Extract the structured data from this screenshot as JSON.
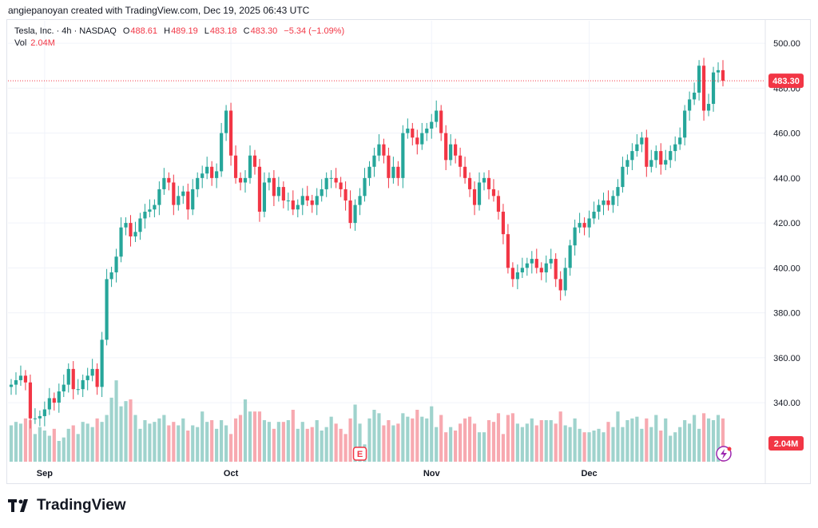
{
  "header": {
    "credit": "angiepanoyan created with TradingView.com, Dec 19, 2025 06:43 UTC"
  },
  "legend": {
    "symbol": "Tesla, Inc. · 4h · NASDAQ",
    "o_label": "O",
    "o_value": "488.61",
    "h_label": "H",
    "h_value": "489.19",
    "l_label": "L",
    "l_value": "483.18",
    "c_label": "C",
    "c_value": "483.30",
    "change": "−5.34 (−1.09%)",
    "vol_label": "Vol",
    "vol_value": "2.04M"
  },
  "footer": {
    "brand": "TradingView",
    "logo_text": "TV"
  },
  "colors": {
    "up": "#26a69a",
    "down": "#f23645",
    "vol_up": "#9fd3cd",
    "vol_down": "#f7a9b0",
    "grid": "#f0f3fa",
    "text": "#131722"
  },
  "chart_data": {
    "type": "candlestick",
    "title": "Tesla, Inc. · 4h · NASDAQ",
    "y_axis": {
      "ticks": [
        340,
        360,
        380,
        400,
        420,
        440,
        460,
        480,
        500
      ],
      "range": [
        313,
        510
      ]
    },
    "x_axis": {
      "labels": [
        {
          "label": "Sep",
          "index": 7
        },
        {
          "label": "Oct",
          "index": 46
        },
        {
          "label": "Nov",
          "index": 88
        },
        {
          "label": "Dec",
          "index": 121
        }
      ]
    },
    "last_price_label": "483.30",
    "last_volume_label": "2.04M",
    "event_marker": {
      "label": "E",
      "index": 73
    },
    "closes": [
      348,
      350,
      352,
      349,
      333,
      333,
      334,
      337,
      342,
      340,
      345,
      348,
      355,
      346,
      346,
      350,
      352,
      355,
      347,
      368,
      395,
      398,
      405,
      418,
      420,
      414,
      416,
      422,
      425,
      426,
      428,
      435,
      440,
      438,
      428,
      432,
      434,
      426,
      435,
      440,
      442,
      445,
      440,
      443,
      460,
      470,
      450,
      440,
      438,
      440,
      450,
      445,
      425,
      438,
      440,
      432,
      436,
      430,
      430,
      426,
      428,
      432,
      430,
      428,
      432,
      435,
      440,
      440,
      438,
      435,
      430,
      420,
      428,
      432,
      440,
      445,
      450,
      455,
      450,
      440,
      445,
      440,
      460,
      462,
      458,
      455,
      460,
      462,
      465,
      470,
      460,
      448,
      455,
      450,
      445,
      440,
      435,
      428,
      438,
      440,
      435,
      432,
      425,
      415,
      400,
      395,
      398,
      400,
      402,
      404,
      400,
      398,
      402,
      404,
      395,
      390,
      400,
      410,
      418,
      420,
      418,
      422,
      425,
      428,
      430,
      428,
      432,
      436,
      445,
      448,
      452,
      455,
      458,
      445,
      448,
      452,
      446,
      448,
      452,
      455,
      458,
      470,
      475,
      478,
      490,
      470,
      473,
      487,
      488,
      483.3
    ],
    "volumes": [
      21,
      23,
      22,
      25,
      24,
      16,
      20,
      18,
      15,
      19,
      12,
      14,
      19,
      21,
      16,
      23,
      22,
      20,
      25,
      23,
      27,
      37,
      47,
      32,
      35,
      36,
      27,
      19,
      24,
      22,
      23,
      25,
      27,
      21,
      23,
      21,
      25,
      18,
      21,
      20,
      29,
      23,
      24,
      19,
      24,
      21,
      16,
      25,
      27,
      36,
      29,
      29,
      29,
      24,
      23,
      19,
      23,
      23,
      24,
      30,
      19,
      23,
      19,
      20,
      24,
      18,
      20,
      26,
      22,
      19,
      16,
      25,
      33,
      22,
      10,
      25,
      30,
      28,
      21,
      24,
      21,
      22,
      28,
      26,
      25,
      30,
      26,
      25,
      32,
      20,
      27,
      17,
      20,
      18,
      22,
      25,
      26,
      22,
      17,
      17,
      24,
      23,
      28,
      16,
      27,
      28,
      22,
      20,
      22,
      25,
      21,
      24,
      24,
      24,
      22,
      29,
      21,
      20,
      25,
      19,
      17,
      17,
      18,
      19,
      17,
      23,
      20,
      29,
      20,
      24,
      25,
      26,
      19,
      25,
      20,
      27,
      18,
      25,
      15,
      17,
      20,
      24,
      22,
      27,
      19,
      28,
      25,
      24,
      27,
      25
    ]
  }
}
